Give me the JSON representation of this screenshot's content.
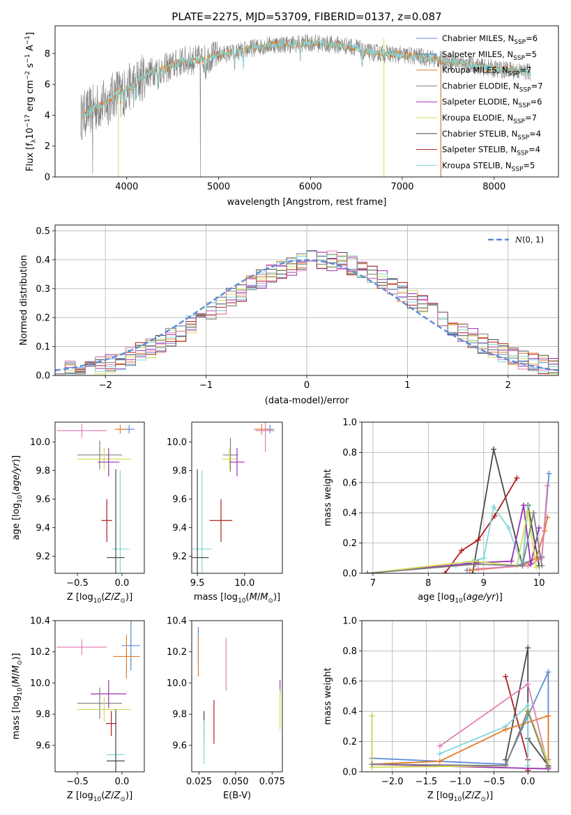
{
  "figure_title": "PLATE=2275, MJD=53709, FIBERID=0137, z=0.087",
  "colors": {
    "chabrier_miles": "#5b8bd6",
    "salpeter_miles": "#1f9ec9",
    "kroupa_miles": "#e07b2a",
    "chabrier_elodie": "#7f7f7f",
    "salpeter_elodie": "#9b2fb0",
    "kroupa_elodie": "#d4dc55",
    "chabrier_stelib": "#4a4a4a",
    "salpeter_stelib": "#b01c1c",
    "kroupa_stelib": "#7fd6dc",
    "normal_curve": "#5b8bd6",
    "pink": "#e37fb7"
  },
  "chart_data": [
    {
      "id": "spectrum",
      "type": "line",
      "title": "PLATE=2275, MJD=53709, FIBERID=0137, z=0.087",
      "xlabel": "wavelength [Angstrom, rest frame]",
      "ylabel": "Flux [f_λ 10^-17 erg cm^-2 s^-1 A^-1]",
      "xlim": [
        3220,
        8700
      ],
      "ylim": [
        0,
        9.8
      ],
      "xticks": [
        4000,
        5000,
        6000,
        7000,
        8000
      ],
      "yticks": [
        0,
        2,
        4,
        6,
        8
      ],
      "continuum": {
        "x": [
          3500,
          3600,
          3700,
          3800,
          3900,
          4000,
          4100,
          4200,
          4300,
          4400,
          4500,
          4600,
          4800,
          5000,
          5200,
          5400,
          5600,
          5800,
          6000,
          6200,
          6400,
          6500,
          6600,
          6800,
          7000,
          7200,
          7400,
          7600,
          7800,
          8000,
          8200,
          8400
        ],
        "y": [
          3.9,
          4.3,
          4.6,
          4.9,
          5.6,
          5.7,
          6.1,
          6.6,
          6.9,
          7.0,
          7.2,
          7.5,
          7.6,
          7.9,
          8.1,
          8.4,
          8.6,
          8.6,
          8.7,
          8.6,
          8.5,
          8.4,
          8.1,
          8.0,
          7.9,
          7.8,
          7.6,
          7.4,
          7.2,
          7.0,
          6.9,
          6.8
        ]
      },
      "legend": [
        {
          "label": "Chabrier MILES, N_SSP=6",
          "color": "#5b8bd6"
        },
        {
          "label": "Salpeter MILES, N_SSP=5",
          "color": "#1f9ec9"
        },
        {
          "label": "Kroupa MILES, N_SSP=7",
          "color": "#e07b2a"
        },
        {
          "label": "Chabrier ELODIE, N_SSP=7",
          "color": "#7f7f7f"
        },
        {
          "label": "Salpeter ELODIE, N_SSP=6",
          "color": "#9b2fb0"
        },
        {
          "label": "Kroupa ELODIE, N_SSP=7",
          "color": "#d4dc55"
        },
        {
          "label": "Chabrier STELIB, N_SSP=4",
          "color": "#4a4a4a"
        },
        {
          "label": "Salpeter STELIB, N_SSP=4",
          "color": "#b01c1c"
        },
        {
          "label": "Kroupa STELIB, N_SSP=5",
          "color": "#7fd6dc"
        }
      ],
      "legend_placement": "right"
    },
    {
      "id": "residuals",
      "type": "histogram",
      "xlabel": "(data-model)/error",
      "ylabel": "Normed distribution",
      "xlim": [
        -2.5,
        2.5
      ],
      "ylim": [
        0,
        0.52
      ],
      "xticks": [
        -2,
        -1,
        0,
        1,
        2
      ],
      "yticks": [
        0.0,
        0.1,
        0.2,
        0.3,
        0.4,
        0.5
      ],
      "grid": true,
      "bin_width": 0.1,
      "curve_label": "N(0,1)",
      "legend_placement": "top-right"
    },
    {
      "id": "age_vs_Z",
      "type": "errorbar",
      "xlabel": "Z [log10(Z/Z⊙)]",
      "ylabel": "age [log10(age/yr)]",
      "xlim": [
        -0.75,
        0.25
      ],
      "ylim": [
        9.08,
        10.14
      ],
      "xticks": [
        -0.5,
        0.0
      ],
      "yticks": [
        9.2,
        9.4,
        9.6,
        9.8,
        10.0
      ],
      "points": [
        {
          "x": 0.08,
          "y": 10.09,
          "xerr": 0.06,
          "yerr": 0.03,
          "color": "#5b8bd6"
        },
        {
          "x": -0.02,
          "y": 10.09,
          "xerr": 0.06,
          "yerr": 0.03,
          "color": "#e07b2a"
        },
        {
          "x": -0.45,
          "y": 10.08,
          "xerr": 0.28,
          "yerr": 0.05,
          "color": "#e37fb7"
        },
        {
          "x": -0.25,
          "y": 9.91,
          "xerr": 0.25,
          "yerr": 0.1,
          "color": "#7f7f7f"
        },
        {
          "x": -0.2,
          "y": 9.88,
          "xerr": 0.3,
          "yerr": 0.08,
          "color": "#d4dc55"
        },
        {
          "x": -0.15,
          "y": 9.86,
          "xerr": 0.12,
          "yerr": 0.1,
          "color": "#9b2fb0"
        },
        {
          "x": -0.17,
          "y": 9.45,
          "xerr": 0.06,
          "yerr": 0.15,
          "color": "#b01c1c"
        },
        {
          "x": -0.02,
          "y": 9.25,
          "xerr": 0.1,
          "yerr": 0.55,
          "color": "#7fd6dc"
        },
        {
          "x": -0.07,
          "y": 9.19,
          "xerr": 0.1,
          "yerr": 0.62,
          "color": "#4a4a4a"
        }
      ]
    },
    {
      "id": "age_vs_mass",
      "type": "errorbar",
      "xlabel": "mass [log10(M/M⊙)]",
      "ylabel": "",
      "xlim": [
        9.44,
        10.4
      ],
      "ylim": [
        9.08,
        10.14
      ],
      "xticks": [
        9.5,
        10.0
      ],
      "yticks": [
        9.2,
        9.4,
        9.6,
        9.8,
        10.0
      ],
      "points": [
        {
          "x": 10.27,
          "y": 10.09,
          "xerr": 0.04,
          "yerr": 0.03,
          "color": "#5b8bd6"
        },
        {
          "x": 10.18,
          "y": 10.09,
          "xerr": 0.08,
          "yerr": 0.04,
          "color": "#e07b2a"
        },
        {
          "x": 10.22,
          "y": 10.08,
          "xerr": 0.1,
          "yerr": 0.15,
          "color": "#e37fb7"
        },
        {
          "x": 9.85,
          "y": 9.91,
          "xerr": 0.08,
          "yerr": 0.12,
          "color": "#7f7f7f"
        },
        {
          "x": 9.84,
          "y": 9.88,
          "xerr": 0.08,
          "yerr": 0.08,
          "color": "#d4dc55"
        },
        {
          "x": 9.92,
          "y": 9.86,
          "xerr": 0.08,
          "yerr": 0.1,
          "color": "#9b2fb0"
        },
        {
          "x": 9.75,
          "y": 9.45,
          "xerr": 0.12,
          "yerr": 0.15,
          "color": "#b01c1c"
        },
        {
          "x": 9.55,
          "y": 9.25,
          "xerr": 0.1,
          "yerr": 0.55,
          "color": "#7fd6dc"
        },
        {
          "x": 9.5,
          "y": 9.19,
          "xerr": 0.12,
          "yerr": 0.62,
          "color": "#4a4a4a"
        }
      ]
    },
    {
      "id": "mass_weight_vs_age",
      "type": "line",
      "xlabel": "age [log10(age/yr)]",
      "ylabel": "mass weight",
      "xlim": [
        6.8,
        10.35
      ],
      "ylim": [
        0,
        1.0
      ],
      "xticks": [
        7,
        8,
        9,
        10
      ],
      "yticks": [
        0.0,
        0.2,
        0.4,
        0.6,
        0.8,
        1.0
      ],
      "grid": true,
      "series": [
        {
          "color": "#4a4a4a",
          "x": [
            8.8,
            9.18,
            9.7,
            9.8,
            10.0
          ],
          "y": [
            0.0,
            0.82,
            0.05,
            0.45,
            0.05
          ]
        },
        {
          "color": "#b01c1c",
          "x": [
            8.3,
            8.6,
            8.9,
            9.2,
            9.6
          ],
          "y": [
            0.0,
            0.15,
            0.22,
            0.38,
            0.63
          ]
        },
        {
          "color": "#7fd6dc",
          "x": [
            8.5,
            9.0,
            9.18,
            9.45,
            9.7,
            9.8
          ],
          "y": [
            0.05,
            0.1,
            0.44,
            0.3,
            0.05,
            0.44
          ]
        },
        {
          "color": "#5b8bd6",
          "x": [
            8.7,
            9.6,
            10.05,
            10.18
          ],
          "y": [
            0.02,
            0.05,
            0.11,
            0.66
          ]
        },
        {
          "color": "#e07b2a",
          "x": [
            8.75,
            9.7,
            9.95,
            10.1,
            10.15
          ],
          "y": [
            0.02,
            0.05,
            0.1,
            0.28,
            0.37
          ]
        },
        {
          "color": "#e37fb7",
          "x": [
            8.9,
            9.8,
            10.05,
            10.15
          ],
          "y": [
            0.03,
            0.05,
            0.1,
            0.58
          ]
        },
        {
          "color": "#9b2fb0",
          "x": [
            6.9,
            8.9,
            9.5,
            9.72,
            9.85,
            10.0
          ],
          "y": [
            0.0,
            0.07,
            0.08,
            0.45,
            0.06,
            0.3
          ]
        },
        {
          "color": "#d4dc55",
          "x": [
            6.9,
            8.8,
            9.6,
            9.8,
            9.95
          ],
          "y": [
            0.0,
            0.08,
            0.05,
            0.41,
            0.04
          ]
        },
        {
          "color": "#7f7f7f",
          "x": [
            6.9,
            8.85,
            9.7,
            9.9,
            10.05
          ],
          "y": [
            0.0,
            0.06,
            0.05,
            0.4,
            0.05
          ]
        }
      ]
    },
    {
      "id": "mass_vs_Z",
      "type": "errorbar",
      "xlabel": "Z [log10(Z/Z⊙)]",
      "ylabel": "mass [log10(M/M⊙)]",
      "xlim": [
        -0.75,
        0.25
      ],
      "ylim": [
        9.43,
        10.4
      ],
      "xticks": [
        -0.5,
        0.0
      ],
      "yticks": [
        9.6,
        9.8,
        10.0,
        10.2,
        10.4
      ],
      "points": [
        {
          "x": 0.1,
          "y": 10.24,
          "xerr": 0.1,
          "yerr": 0.16,
          "color": "#5b8bd6"
        },
        {
          "x": 0.05,
          "y": 10.17,
          "xerr": 0.15,
          "yerr": 0.14,
          "color": "#e07b2a"
        },
        {
          "x": -0.45,
          "y": 10.23,
          "xerr": 0.28,
          "yerr": 0.05,
          "color": "#e37fb7"
        },
        {
          "x": -0.15,
          "y": 9.93,
          "xerr": 0.2,
          "yerr": 0.09,
          "color": "#9b2fb0"
        },
        {
          "x": -0.25,
          "y": 9.87,
          "xerr": 0.25,
          "yerr": 0.1,
          "color": "#7f7f7f"
        },
        {
          "x": -0.2,
          "y": 9.83,
          "xerr": 0.3,
          "yerr": 0.08,
          "color": "#d4dc55"
        },
        {
          "x": -0.12,
          "y": 9.74,
          "xerr": 0.06,
          "yerr": 0.08,
          "color": "#b01c1c"
        },
        {
          "x": -0.07,
          "y": 9.54,
          "xerr": 0.1,
          "yerr": 0.27,
          "color": "#7fd6dc"
        },
        {
          "x": -0.07,
          "y": 9.5,
          "xerr": 0.1,
          "yerr": 0.33,
          "color": "#4a4a4a"
        }
      ]
    },
    {
      "id": "mass_vs_ebv",
      "type": "errorbar",
      "xlabel": "E(B-V)",
      "ylabel": "",
      "xlim": [
        0.02,
        0.082
      ],
      "ylim": [
        9.43,
        10.4
      ],
      "xticks": [
        0.025,
        0.05,
        0.075
      ],
      "yticks": [
        9.6,
        9.8,
        10.0,
        10.2,
        10.4
      ],
      "points": [
        {
          "x": 0.0245,
          "y": 10.24,
          "xerr": 0,
          "yerr": 0.12,
          "color": "#5b8bd6"
        },
        {
          "x": 0.0245,
          "y": 10.17,
          "xerr": 0,
          "yerr": 0.13,
          "color": "#e07b2a"
        },
        {
          "x": 0.0435,
          "y": 10.12,
          "xerr": 0,
          "yerr": 0.17,
          "color": "#e37fb7"
        },
        {
          "x": 0.0804,
          "y": 9.97,
          "xerr": 0,
          "yerr": 0.05,
          "color": "#9b2fb0"
        },
        {
          "x": 0.0804,
          "y": 9.83,
          "xerr": 0,
          "yerr": 0.13,
          "color": "#d4dc55"
        },
        {
          "x": 0.0284,
          "y": 9.72,
          "xerr": 0,
          "yerr": 0.1,
          "color": "#4a4a4a"
        },
        {
          "x": 0.0352,
          "y": 9.75,
          "xerr": 0,
          "yerr": 0.14,
          "color": "#b01c1c"
        },
        {
          "x": 0.0284,
          "y": 9.62,
          "xerr": 0,
          "yerr": 0.14,
          "color": "#7fd6dc"
        }
      ]
    },
    {
      "id": "mass_weight_vs_Z",
      "type": "line",
      "xlabel": "Z [log10(Z/Z⊙)]",
      "ylabel": "mass weight",
      "xlim": [
        -2.45,
        0.45
      ],
      "ylim": [
        0,
        1.0
      ],
      "xticks": [
        -2.0,
        -1.5,
        -1.0,
        -0.5,
        0.0
      ],
      "yticks": [
        0.0,
        0.2,
        0.4,
        0.6,
        0.8,
        1.0
      ],
      "grid": true,
      "series": [
        {
          "color": "#4a4a4a",
          "x": [
            -0.33,
            0.0,
            0.0,
            0.3
          ],
          "y": [
            0.08,
            0.82,
            0.22,
            0.04
          ]
        },
        {
          "color": "#b01c1c",
          "x": [
            -0.33,
            0.0,
            0.0
          ],
          "y": [
            0.63,
            0.08,
            0.01
          ]
        },
        {
          "color": "#7fd6dc",
          "x": [
            -1.3,
            -0.33,
            0.0,
            0.0
          ],
          "y": [
            0.12,
            0.3,
            0.44,
            0.04
          ]
        },
        {
          "color": "#5b8bd6",
          "x": [
            -2.3,
            -0.33,
            0.3,
            0.3
          ],
          "y": [
            0.09,
            0.05,
            0.66,
            0.08
          ]
        },
        {
          "color": "#e07b2a",
          "x": [
            -2.3,
            -1.3,
            -0.33,
            0.3,
            0.3
          ],
          "y": [
            0.05,
            0.07,
            0.28,
            0.37,
            0.02
          ]
        },
        {
          "color": "#e37fb7",
          "x": [
            -1.3,
            0.0,
            0.3
          ],
          "y": [
            0.17,
            0.58,
            0.03
          ]
        },
        {
          "color": "#9b2fb0",
          "x": [
            -2.3,
            -2.3,
            0.3
          ],
          "y": [
            0.37,
            0.05,
            0.02
          ]
        },
        {
          "color": "#d4dc55",
          "x": [
            -2.3,
            -2.3,
            -0.33,
            0.0,
            0.3
          ],
          "y": [
            0.37,
            0.03,
            0.04,
            0.41,
            0.06
          ]
        },
        {
          "color": "#7f7f7f",
          "x": [
            -2.3,
            -0.33,
            0.0,
            0.3
          ],
          "y": [
            0.05,
            0.04,
            0.4,
            0.03
          ]
        }
      ]
    }
  ]
}
